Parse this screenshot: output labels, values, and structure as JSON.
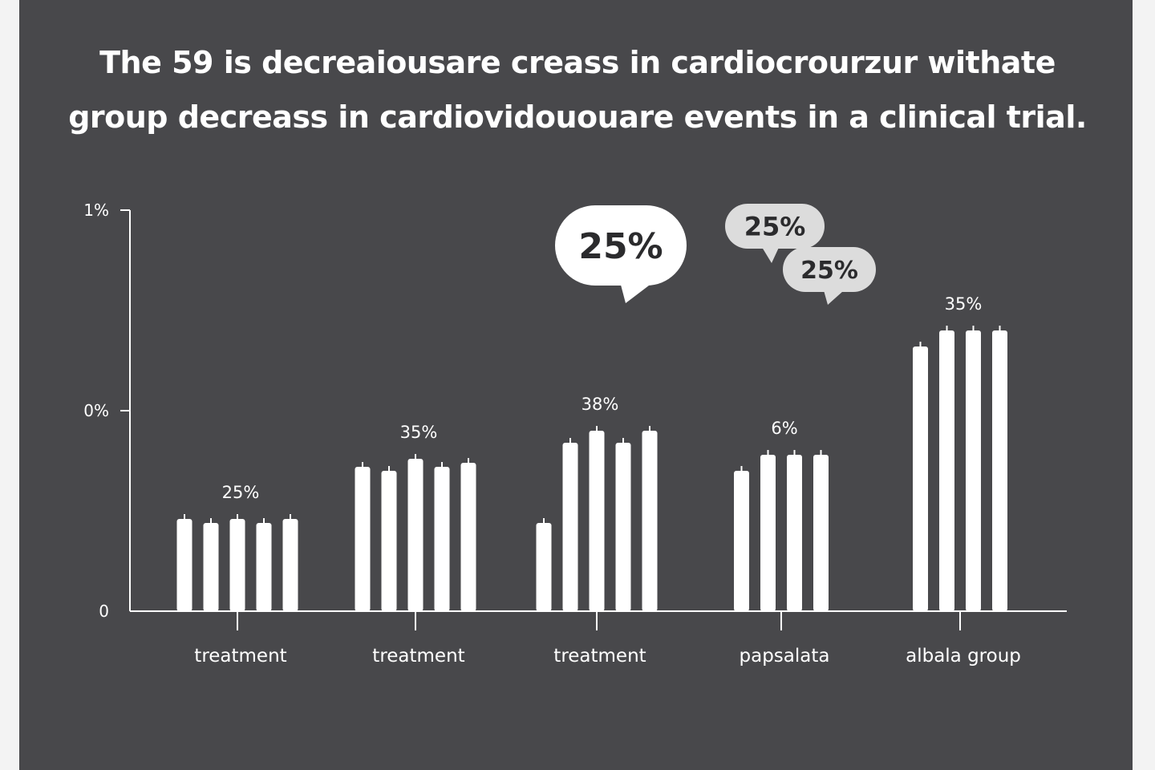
{
  "title_lines": [
    "The 59 is decreaiousare creass in cardiocrourzur withate",
    "group decreass in cardiovidououare events in a clinical trial."
  ],
  "chart_data": {
    "type": "bar",
    "title": "The 59 is decreaiousare creass in cardiocrourzur withate group decreass in cardiovidououare events in a clinical trial.",
    "y_ticks": [
      {
        "label": "0",
        "value": 0
      },
      {
        "label": "0%",
        "value": 0.5
      },
      {
        "label": "1%",
        "value": 1.0
      }
    ],
    "ylim": [
      0,
      1.0
    ],
    "groups": [
      {
        "category": "treatment",
        "label": "25%",
        "bars": [
          0.23,
          0.22,
          0.23,
          0.22,
          0.23
        ]
      },
      {
        "category": "treatment",
        "label": "35%",
        "bars": [
          0.36,
          0.35,
          0.38,
          0.36,
          0.37
        ]
      },
      {
        "category": "treatment",
        "label": "38%",
        "bars": [
          0.22,
          0.42,
          0.45,
          0.42,
          0.45
        ]
      },
      {
        "category": "papsalata",
        "label": "6%",
        "bars": [
          0.35,
          0.39,
          0.39,
          0.39
        ]
      },
      {
        "category": "albala group",
        "label": "35%",
        "bars": [
          0.66,
          0.7,
          0.7,
          0.7
        ]
      }
    ],
    "callouts": [
      "25%",
      "25%",
      "25%"
    ]
  },
  "colors": {
    "background": "#48484b",
    "bar": "#ffffff",
    "axis": "#ffffff",
    "bubble_large": "#ffffff",
    "bubble_small": "#dcdcdc"
  }
}
